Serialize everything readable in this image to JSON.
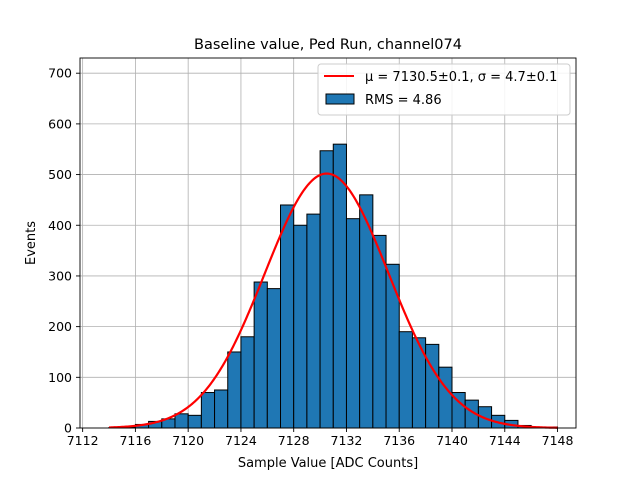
{
  "chart_data": {
    "type": "bar",
    "title": "Baseline value, Ped Run, channel074",
    "xlabel": "Sample Value [ADC Counts]",
    "ylabel": "Events",
    "xlim": [
      7111.8,
      7149.4
    ],
    "ylim": [
      0,
      730
    ],
    "xticks": [
      7112,
      7116,
      7120,
      7124,
      7128,
      7132,
      7136,
      7140,
      7144,
      7148
    ],
    "yticks": [
      0,
      100,
      200,
      300,
      400,
      500,
      600,
      700
    ],
    "grid": true,
    "legend_position": "top-right",
    "histogram": {
      "name": "RMS = 4.86",
      "color": "#1f77b4",
      "edgecolor": "#000000",
      "bin_edges": [
        7114,
        7115,
        7116,
        7117,
        7118,
        7119,
        7120,
        7121,
        7122,
        7123,
        7124,
        7125,
        7126,
        7127,
        7128,
        7129,
        7130,
        7131,
        7132,
        7133,
        7134,
        7135,
        7136,
        7137,
        7138,
        7139,
        7140,
        7141,
        7142,
        7143,
        7144,
        7145,
        7146,
        7147,
        7148
      ],
      "counts": [
        1,
        2,
        7,
        13,
        18,
        28,
        25,
        70,
        75,
        150,
        180,
        288,
        275,
        440,
        400,
        422,
        547,
        560,
        413,
        460,
        380,
        323,
        190,
        178,
        165,
        120,
        70,
        55,
        42,
        25,
        15,
        5,
        2,
        2
      ]
    },
    "fit": {
      "name": "μ = 7130.5±0.1, σ = 4.7±0.1",
      "color": "#ff0000",
      "mu": 7130.5,
      "sigma": 4.7,
      "amplitude": 502,
      "x_range": [
        7114,
        7148
      ]
    }
  }
}
